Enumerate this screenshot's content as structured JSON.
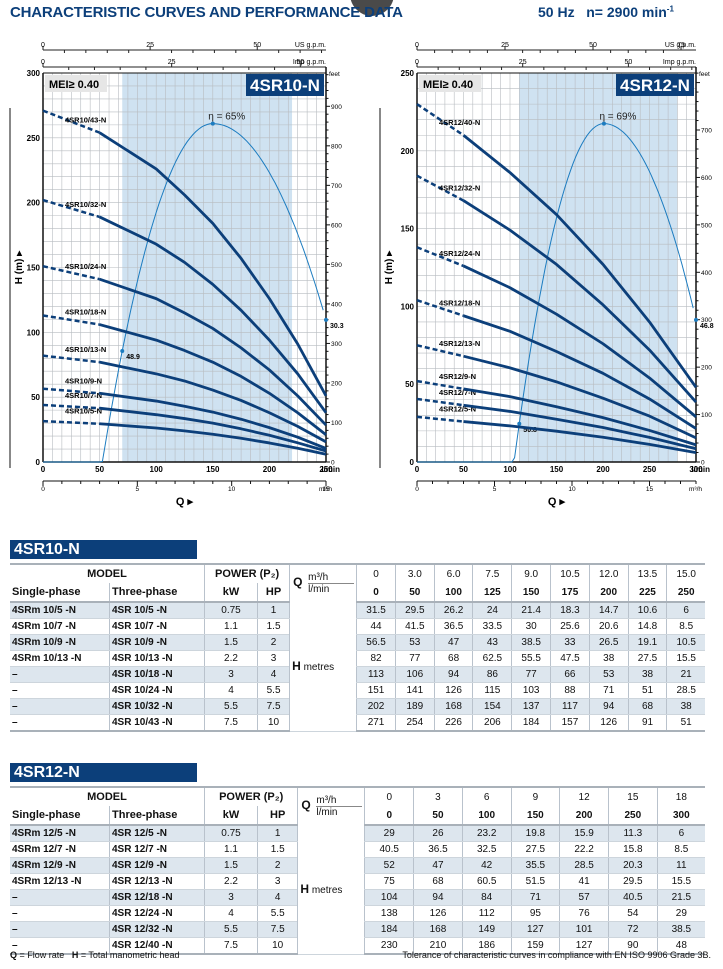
{
  "header": {
    "title": "CHARACTERISTIC CURVES AND PERFORMANCE DATA",
    "frequency": "50 Hz",
    "speed_label": "n= 2900 min",
    "speed_exp": "-1"
  },
  "chart_data": [
    {
      "type": "line",
      "name": "4SR10-N",
      "badge": "4SR10-N",
      "mei": "MEI≥ 0.40",
      "xlabel": "Q",
      "ylabel": "H (m)",
      "x_unit": "l/min",
      "xlim": [
        0,
        250
      ],
      "ylim": [
        0,
        300
      ],
      "x_ticks": [
        0,
        50,
        100,
        150,
        200,
        250
      ],
      "y_ticks": [
        0,
        50,
        100,
        150,
        200,
        250,
        300
      ],
      "secondary_axes": {
        "m3h": {
          "label": "m³/h",
          "ticks": [
            0,
            5,
            10,
            15
          ]
        },
        "us_gpm": {
          "label": "US g.p.m.",
          "ticks": [
            0,
            25,
            50
          ]
        },
        "imp_gpm": {
          "label": "Imp g.p.m.",
          "ticks": [
            0,
            25,
            50
          ]
        },
        "feet": {
          "label": "feet",
          "ticks": [
            0,
            100,
            200,
            300,
            400,
            500,
            600,
            700,
            800,
            900
          ]
        }
      },
      "recommended_range_lmin": [
        70,
        220
      ],
      "efficiency": {
        "label": "η = 65%",
        "peak": 65,
        "start_label": "48.9",
        "end_label": "30.3"
      },
      "x": [
        0,
        50,
        100,
        125,
        150,
        175,
        200,
        225,
        250
      ],
      "series": [
        {
          "name": "4SR10/5-N",
          "values": [
            31.5,
            29.5,
            26.2,
            24,
            21.4,
            18.3,
            14.7,
            10.6,
            6
          ]
        },
        {
          "name": "4SR10/7-N",
          "values": [
            44,
            41.5,
            36.5,
            33.5,
            30,
            25.6,
            20.6,
            14.8,
            8.5
          ]
        },
        {
          "name": "4SR10/9-N",
          "values": [
            56.5,
            53,
            47,
            43,
            38.5,
            33,
            26.5,
            19.1,
            10.5
          ]
        },
        {
          "name": "4SR10/13-N",
          "values": [
            82,
            77,
            68,
            62.5,
            55.5,
            47.5,
            38,
            27.5,
            15.5
          ]
        },
        {
          "name": "4SR10/18-N",
          "values": [
            113,
            106,
            94,
            86,
            77,
            66,
            53,
            38,
            21
          ]
        },
        {
          "name": "4SR10/24-N",
          "values": [
            151,
            141,
            126,
            115,
            103,
            88,
            71,
            51,
            28.5
          ]
        },
        {
          "name": "4SR10/32-N",
          "values": [
            202,
            189,
            168,
            154,
            137,
            117,
            94,
            68,
            38
          ]
        },
        {
          "name": "4SR10/43-N",
          "values": [
            271,
            254,
            226,
            206,
            184,
            157,
            126,
            91,
            51
          ]
        }
      ]
    },
    {
      "type": "line",
      "name": "4SR12-N",
      "badge": "4SR12-N",
      "mei": "MEI≥ 0.40",
      "xlabel": "Q",
      "ylabel": "H (m)",
      "x_unit": "l/min",
      "xlim": [
        0,
        300
      ],
      "ylim": [
        0,
        250
      ],
      "x_ticks": [
        0,
        50,
        100,
        150,
        200,
        250,
        300
      ],
      "y_ticks": [
        0,
        50,
        100,
        150,
        200,
        250
      ],
      "secondary_axes": {
        "m3h": {
          "label": "m³/h",
          "ticks": [
            0,
            5,
            10,
            15
          ]
        },
        "us_gpm": {
          "label": "US g.p.m.",
          "ticks": [
            0,
            25,
            50,
            75
          ]
        },
        "imp_gpm": {
          "label": "Imp g.p.m.",
          "ticks": [
            0,
            25,
            50
          ]
        },
        "feet": {
          "label": "feet",
          "ticks": [
            0,
            100,
            200,
            300,
            400,
            500,
            600,
            700
          ]
        }
      },
      "recommended_range_lmin": [
        110,
        280
      ],
      "efficiency": {
        "label": "η = 69%",
        "peak": 69,
        "start_label": "50.8",
        "end_label": "46.8"
      },
      "x": [
        0,
        50,
        100,
        150,
        200,
        250,
        300
      ],
      "series": [
        {
          "name": "4SR12/5-N",
          "values": [
            29,
            26,
            23.2,
            19.8,
            15.9,
            11.3,
            6
          ]
        },
        {
          "name": "4SR12/7-N",
          "values": [
            40.5,
            36.5,
            32.5,
            27.5,
            22.2,
            15.8,
            8.5
          ]
        },
        {
          "name": "4SR12/9-N",
          "values": [
            52,
            47,
            42,
            35.5,
            28.5,
            20.3,
            11
          ]
        },
        {
          "name": "4SR12/13-N",
          "values": [
            75,
            68,
            60.5,
            51.5,
            41,
            29.5,
            15.5
          ]
        },
        {
          "name": "4SR12/18-N",
          "values": [
            104,
            94,
            84,
            71,
            57,
            40.5,
            21.5
          ]
        },
        {
          "name": "4SR12/24-N",
          "values": [
            138,
            126,
            112,
            95,
            76,
            54,
            29
          ]
        },
        {
          "name": "4SR12/32-N",
          "values": [
            184,
            168,
            149,
            127,
            101,
            72,
            38.5
          ]
        },
        {
          "name": "4SR12/40-N",
          "values": [
            230,
            210,
            186,
            159,
            127,
            90,
            48
          ]
        }
      ]
    }
  ],
  "tables": [
    {
      "title": "4SR10-N",
      "model_label": "MODEL",
      "power_label": "POWER (P₂)",
      "single_label": "Single-phase",
      "three_label": "Three-phase",
      "kw_label": "kW",
      "hp_label": "HP",
      "q_label": "Q",
      "m3h_label": "m³/h",
      "lmin_label": "l/min",
      "h_label": "H",
      "h_unit": "metres",
      "m3h": [
        "0",
        "3.0",
        "6.0",
        "7.5",
        "9.0",
        "10.5",
        "12.0",
        "13.5",
        "15.0"
      ],
      "lmin": [
        "0",
        "50",
        "100",
        "125",
        "150",
        "175",
        "200",
        "225",
        "250"
      ],
      "rows": [
        {
          "single": "4SRm 10/5  -N",
          "three": "4SR 10/5  -N",
          "kw": "0.75",
          "hp": "1",
          "h": [
            "31.5",
            "29.5",
            "26.2",
            "24",
            "21.4",
            "18.3",
            "14.7",
            "10.6",
            "6"
          ]
        },
        {
          "single": "4SRm 10/7  -N",
          "three": "4SR 10/7  -N",
          "kw": "1.1",
          "hp": "1.5",
          "h": [
            "44",
            "41.5",
            "36.5",
            "33.5",
            "30",
            "25.6",
            "20.6",
            "14.8",
            "8.5"
          ]
        },
        {
          "single": "4SRm 10/9  -N",
          "three": "4SR 10/9  -N",
          "kw": "1.5",
          "hp": "2",
          "h": [
            "56.5",
            "53",
            "47",
            "43",
            "38.5",
            "33",
            "26.5",
            "19.1",
            "10.5"
          ]
        },
        {
          "single": "4SRm 10/13 -N",
          "three": "4SR 10/13 -N",
          "kw": "2.2",
          "hp": "3",
          "h": [
            "82",
            "77",
            "68",
            "62.5",
            "55.5",
            "47.5",
            "38",
            "27.5",
            "15.5"
          ]
        },
        {
          "single": "–",
          "three": "4SR 10/18 -N",
          "kw": "3",
          "hp": "4",
          "h": [
            "113",
            "106",
            "94",
            "86",
            "77",
            "66",
            "53",
            "38",
            "21"
          ]
        },
        {
          "single": "–",
          "three": "4SR 10/24 -N",
          "kw": "4",
          "hp": "5.5",
          "h": [
            "151",
            "141",
            "126",
            "115",
            "103",
            "88",
            "71",
            "51",
            "28.5"
          ]
        },
        {
          "single": "–",
          "three": "4SR 10/32 -N",
          "kw": "5.5",
          "hp": "7.5",
          "h": [
            "202",
            "189",
            "168",
            "154",
            "137",
            "117",
            "94",
            "68",
            "38"
          ]
        },
        {
          "single": "–",
          "three": "4SR 10/43 -N",
          "kw": "7.5",
          "hp": "10",
          "h": [
            "271",
            "254",
            "226",
            "206",
            "184",
            "157",
            "126",
            "91",
            "51"
          ]
        }
      ]
    },
    {
      "title": "4SR12-N",
      "model_label": "MODEL",
      "power_label": "POWER (P₂)",
      "single_label": "Single-phase",
      "three_label": "Three-phase",
      "kw_label": "kW",
      "hp_label": "HP",
      "q_label": "Q",
      "m3h_label": "m³/h",
      "lmin_label": "l/min",
      "h_label": "H",
      "h_unit": "metres",
      "m3h": [
        "0",
        "3",
        "6",
        "9",
        "12",
        "15",
        "18"
      ],
      "lmin": [
        "0",
        "50",
        "100",
        "150",
        "200",
        "250",
        "300"
      ],
      "rows": [
        {
          "single": "4SRm 12/5  -N",
          "three": "4SR 12/5  -N",
          "kw": "0.75",
          "hp": "1",
          "h": [
            "29",
            "26",
            "23.2",
            "19.8",
            "15.9",
            "11.3",
            "6"
          ]
        },
        {
          "single": "4SRm 12/7  -N",
          "three": "4SR 12/7  -N",
          "kw": "1.1",
          "hp": "1.5",
          "h": [
            "40.5",
            "36.5",
            "32.5",
            "27.5",
            "22.2",
            "15.8",
            "8.5"
          ]
        },
        {
          "single": "4SRm 12/9  -N",
          "three": "4SR 12/9  -N",
          "kw": "1.5",
          "hp": "2",
          "h": [
            "52",
            "47",
            "42",
            "35.5",
            "28.5",
            "20.3",
            "11"
          ]
        },
        {
          "single": "4SRm 12/13 -N",
          "three": "4SR 12/13 -N",
          "kw": "2.2",
          "hp": "3",
          "h": [
            "75",
            "68",
            "60.5",
            "51.5",
            "41",
            "29.5",
            "15.5"
          ]
        },
        {
          "single": "–",
          "three": "4SR 12/18 -N",
          "kw": "3",
          "hp": "4",
          "h": [
            "104",
            "94",
            "84",
            "71",
            "57",
            "40.5",
            "21.5"
          ]
        },
        {
          "single": "–",
          "three": "4SR 12/24 -N",
          "kw": "4",
          "hp": "5.5",
          "h": [
            "138",
            "126",
            "112",
            "95",
            "76",
            "54",
            "29"
          ]
        },
        {
          "single": "–",
          "three": "4SR 12/32 -N",
          "kw": "5.5",
          "hp": "7.5",
          "h": [
            "184",
            "168",
            "149",
            "127",
            "101",
            "72",
            "38.5"
          ]
        },
        {
          "single": "–",
          "three": "4SR 12/40 -N",
          "kw": "7.5",
          "hp": "10",
          "h": [
            "230",
            "210",
            "186",
            "159",
            "127",
            "90",
            "48"
          ]
        }
      ]
    }
  ],
  "footer": {
    "legend_q": "Q",
    "legend_q_text": " = Flow rate",
    "legend_h": "H",
    "legend_h_text": " = Total manometric head",
    "tolerance": "Tolerance of characteristic curves in compliance with EN ISO 9906 Grade 3B."
  }
}
